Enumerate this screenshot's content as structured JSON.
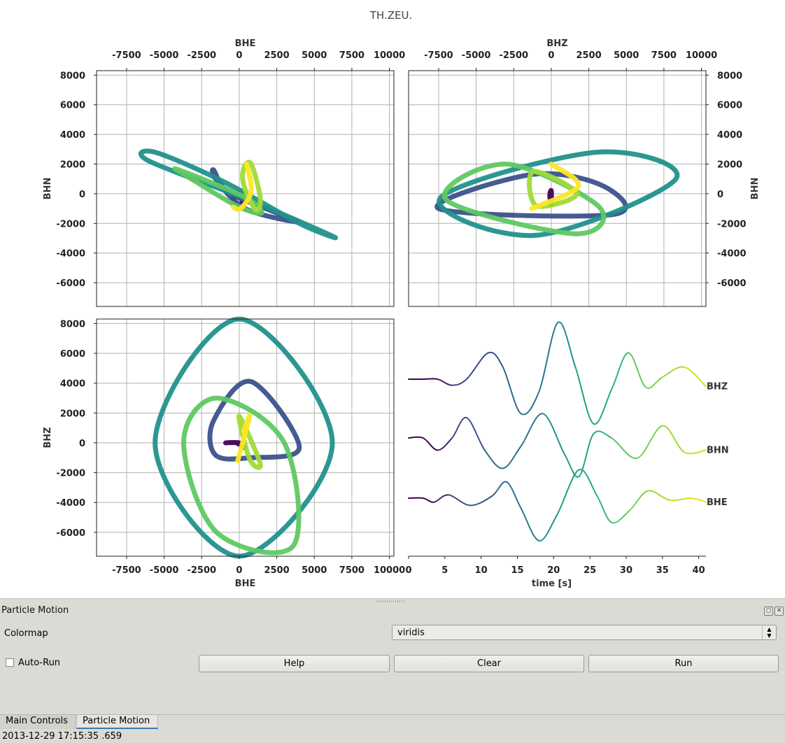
{
  "figure": {
    "title": "TH.ZEU."
  },
  "chart_data": [
    {
      "type": "scatter",
      "panel": "top-left",
      "xlabel": "BHE",
      "ylabel": "BHN",
      "xlim": [
        -9500,
        10300
      ],
      "ylim": [
        -7600,
        8300
      ],
      "xticks": [
        "-7500",
        "-5000",
        "-2500",
        "0",
        "2500",
        "5000",
        "7500",
        "10000"
      ],
      "yticks": [
        "8000",
        "6000",
        "4000",
        "2000",
        "0",
        "-2000",
        "-4000",
        "-6000"
      ],
      "xaxis_position": "top",
      "yaxis_position": "left",
      "grid": true,
      "colormap": "viridis",
      "color_variable": "time",
      "curves": [
        {
          "x": [
            200,
            0,
            -400,
            0,
            200
          ],
          "y": [
            -500,
            -1000,
            -400,
            100,
            -500
          ],
          "color": "#440154"
        },
        {
          "x": [
            -1700,
            -1500,
            400,
            3800,
            2500,
            -700,
            -1700
          ],
          "y": [
            1600,
            900,
            -1000,
            -1900,
            -1300,
            100,
            1600
          ],
          "color": "#3b528b"
        },
        {
          "x": [
            -5600,
            -6000,
            600,
            6300,
            4000,
            -1000,
            -5600
          ],
          "y": [
            2800,
            2200,
            -400,
            -2900,
            -2000,
            800,
            2800
          ],
          "color": "#21918c"
        },
        {
          "x": [
            -4000,
            -3500,
            -200,
            1500,
            300,
            -4000
          ],
          "y": [
            1600,
            1200,
            -800,
            -1300,
            -200,
            1600
          ],
          "color": "#5ec962"
        },
        {
          "x": [
            300,
            300,
            1100,
            1400,
            800,
            300
          ],
          "y": [
            1700,
            600,
            -1100,
            -300,
            2000,
            1700
          ],
          "color": "#a0da39"
        },
        {
          "x": [
            500,
            800,
            100,
            -400
          ],
          "y": [
            2000,
            200,
            -1000,
            -900
          ],
          "color": "#fde725"
        }
      ]
    },
    {
      "type": "scatter",
      "panel": "top-right",
      "xlabel": "BHZ",
      "ylabel": "BHN",
      "xlim": [
        -9500,
        10300
      ],
      "ylim": [
        -7600,
        8300
      ],
      "xticks": [
        "-7500",
        "-5000",
        "-2500",
        "0",
        "2500",
        "5000",
        "7500",
        "10000"
      ],
      "yticks": [
        "8000",
        "6000",
        "4000",
        "2000",
        "0",
        "-2000",
        "-4000",
        "-6000"
      ],
      "xaxis_position": "top",
      "yaxis_position": "right",
      "grid": true,
      "colormap": "viridis",
      "color_variable": "time",
      "curves": [
        {
          "x": [
            0,
            0,
            -100,
            0
          ],
          "y": [
            200,
            -700,
            -100,
            200
          ],
          "color": "#440154"
        },
        {
          "x": [
            -1300,
            -7500,
            4100,
            3500,
            -1300
          ],
          "y": [
            1300,
            -1000,
            -1400,
            500,
            1300
          ],
          "color": "#3b528b"
        },
        {
          "x": [
            3000,
            -7400,
            -1000,
            8300,
            3000
          ],
          "y": [
            2800,
            -300,
            -2800,
            1000,
            2800
          ],
          "color": "#21918c"
        },
        {
          "x": [
            -7000,
            -3000,
            3200,
            1500,
            -7000
          ],
          "y": [
            -400,
            2000,
            -900,
            -2700,
            -400
          ],
          "color": "#5ec962"
        },
        {
          "x": [
            -1200,
            1700,
            -1000,
            -1200
          ],
          "y": [
            1500,
            0,
            -800,
            1500
          ],
          "color": "#a0da39"
        },
        {
          "x": [
            -1300,
            1800,
            0
          ],
          "y": [
            -1000,
            500,
            2000
          ],
          "color": "#fde725"
        }
      ]
    },
    {
      "type": "scatter",
      "panel": "bottom-left",
      "xlabel": "BHE",
      "ylabel": "BHZ",
      "xlim": [
        -9500,
        10300
      ],
      "ylim": [
        -7600,
        8300
      ],
      "xticks": [
        "-7500",
        "-5000",
        "-2500",
        "0",
        "2500",
        "5000",
        "7500",
        "10000"
      ],
      "yticks": [
        "8000",
        "6000",
        "4000",
        "2000",
        "0",
        "-2000",
        "-4000",
        "-6000"
      ],
      "xaxis_position": "bottom",
      "yaxis_position": "left",
      "grid": true,
      "colormap": "viridis",
      "color_variable": "time",
      "curves": [
        {
          "x": [
            -900,
            0,
            300,
            -200,
            -900
          ],
          "y": [
            0,
            0,
            -300,
            0,
            0
          ],
          "color": "#440154"
        },
        {
          "x": [
            -1700,
            800,
            4000,
            700,
            -1600,
            -1700
          ],
          "y": [
            1500,
            4100,
            -300,
            -1000,
            -800,
            1500
          ],
          "color": "#3b528b"
        },
        {
          "x": [
            0,
            -5600,
            0,
            6200,
            0
          ],
          "y": [
            8300,
            0,
            -7600,
            0,
            8300
          ],
          "color": "#21918c"
        },
        {
          "x": [
            -3700,
            -1500,
            3000,
            3600,
            -1500,
            -3700
          ],
          "y": [
            0,
            3000,
            0,
            -6900,
            -6000,
            0
          ],
          "color": "#5ec962"
        },
        {
          "x": [
            0,
            700,
            1400,
            0
          ],
          "y": [
            1800,
            -1100,
            -1400,
            1800
          ],
          "color": "#a0da39"
        },
        {
          "x": [
            -100,
            700,
            300
          ],
          "y": [
            -1200,
            1800,
            800
          ],
          "color": "#fde725"
        }
      ]
    },
    {
      "type": "line",
      "panel": "bottom-right",
      "xlabel": "time [s]",
      "xlim": [
        0,
        41
      ],
      "xticks": [
        "0",
        "5",
        "10",
        "15",
        "20",
        "25",
        "30",
        "35",
        "40"
      ],
      "grid": false,
      "colormap": "viridis",
      "color_variable": "time",
      "series": [
        {
          "name": "BHZ",
          "x": [
            0,
            2,
            4,
            6,
            8,
            11,
            13,
            15.5,
            18,
            20.6,
            23,
            25.5,
            28,
            30.3,
            32.7,
            35,
            38,
            41
          ],
          "y": [
            0,
            0,
            0,
            -1.5,
            0,
            6.5,
            3,
            -8.5,
            -3,
            14,
            3,
            -11,
            -2.5,
            6.5,
            -2,
            0.5,
            3,
            -1.8
          ],
          "colors": [
            "#440154",
            "#440154",
            "#482475",
            "#3e4989",
            "#3e4989",
            "#3b528b",
            "#31688e",
            "#2c728e",
            "#2a788e",
            "#21918c",
            "#1fa187",
            "#22a884",
            "#35b779",
            "#5ec962",
            "#7ad151",
            "#a0da39",
            "#d0e11c",
            "#fde725"
          ]
        },
        {
          "name": "BHN",
          "x": [
            0,
            2,
            4,
            6,
            8,
            10.5,
            13,
            15.5,
            18.5,
            21.5,
            23.5,
            25.5,
            28,
            31.5,
            35,
            38,
            41
          ],
          "y": [
            0,
            0,
            -3,
            0,
            5,
            -3,
            -7.5,
            -2,
            6,
            -4,
            -9.5,
            1,
            0,
            -5,
            3,
            -3.5,
            -3
          ],
          "colors": [
            "#440154",
            "#440154",
            "#482475",
            "#3e4989",
            "#3b528b",
            "#31688e",
            "#2c728e",
            "#2a788e",
            "#21918c",
            "#1fa187",
            "#22a884",
            "#35b779",
            "#5ec962",
            "#7ad151",
            "#a0da39",
            "#d0e11c",
            "#fde725"
          ]
        },
        {
          "name": "BHE",
          "x": [
            0,
            2,
            3.5,
            5.5,
            8.5,
            11.5,
            13.5,
            15.5,
            18,
            20.5,
            23.5,
            26,
            28,
            30.5,
            33,
            36,
            39,
            41
          ],
          "y": [
            0,
            0,
            -1,
            0.8,
            -1.8,
            0.5,
            4,
            -2.5,
            -10.5,
            -4,
            7,
            0.5,
            -6,
            -3,
            1.8,
            -0.5,
            0,
            -1
          ],
          "colors": [
            "#440154",
            "#440154",
            "#482475",
            "#3e4989",
            "#3b528b",
            "#31688e",
            "#2c728e",
            "#2a788e",
            "#21918c",
            "#1fa187",
            "#22a884",
            "#35b779",
            "#5ec962",
            "#7ad151",
            "#a0da39",
            "#d0e11c",
            "#e5e419",
            "#fde725"
          ]
        }
      ]
    }
  ],
  "dock": {
    "title": "Particle Motion",
    "float_icon": "float-icon",
    "close_icon": "close-icon",
    "colormap_label": "Colormap",
    "colormap_value": "viridis",
    "autorun_label": "Auto-Run",
    "autorun_checked": false,
    "help_label": "Help",
    "clear_label": "Clear",
    "run_label": "Run"
  },
  "tabs": [
    {
      "label": "Main Controls",
      "active": false
    },
    {
      "label": "Particle Motion",
      "active": true
    }
  ],
  "status": {
    "text": "2013-12-29 17:15:35 .659"
  }
}
